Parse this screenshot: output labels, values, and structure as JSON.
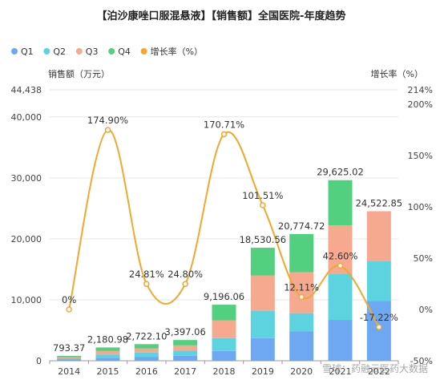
{
  "chart_data": {
    "type": "bar",
    "stacked": true,
    "title": "【泊沙康唑口服混悬液】【销售额】全国医院-年度趋势",
    "ylabel_left": "销售额（万元）",
    "ylabel_right": "增长率（%）",
    "categories": [
      "2014",
      "2015",
      "2016",
      "2017",
      "2018",
      "2019",
      "2020",
      "2021",
      "2022"
    ],
    "series": [
      {
        "name": "Q1",
        "color": "#6ea8f2",
        "values": [
          200,
          500,
          650,
          800,
          1600,
          3700,
          4800,
          6700,
          9800
        ]
      },
      {
        "name": "Q2",
        "color": "#5dd3e0",
        "values": [
          200,
          530,
          680,
          850,
          2100,
          4500,
          3000,
          7500,
          6600
        ]
      },
      {
        "name": "Q3",
        "color": "#f6a98f",
        "values": [
          190,
          570,
          700,
          870,
          2900,
          5800,
          6700,
          8000,
          8122.85
        ]
      },
      {
        "name": "Q4",
        "color": "#52cf7f",
        "values": [
          203.37,
          580.98,
          692.1,
          877.06,
          2596.06,
          4530.56,
          6274.72,
          7425.02,
          0
        ]
      }
    ],
    "totals": [
      "793.37",
      "2,180.98",
      "2,722.10",
      "3,397.06",
      "9,196.06",
      "18,530.56",
      "20,774.72",
      "29,625.02",
      "24,522.85"
    ],
    "growth": {
      "name": "增长率（%）",
      "color": "#f0a830",
      "values": [
        0,
        174.9,
        24.81,
        24.8,
        170.71,
        101.51,
        12.11,
        42.6,
        -17.22
      ],
      "labels": [
        "0%",
        "174.90%",
        "24.81%",
        "24.80%",
        "170.71%",
        "101.51%",
        "12.11%",
        "42.60%",
        "-17.22%"
      ]
    },
    "ylim_left": [
      0,
      44438
    ],
    "yticks_left": [
      "0",
      "10,000",
      "20,000",
      "30,000",
      "40,000",
      "44,438"
    ],
    "yticks_left_values": [
      0,
      10000,
      20000,
      30000,
      40000,
      44438
    ],
    "ylim_right": [
      -50,
      214
    ],
    "yticks_right": [
      "-50%",
      "0%",
      "50%",
      "100%",
      "150%",
      "200%",
      "214%"
    ],
    "yticks_right_values": [
      -50,
      0,
      50,
      100,
      150,
      200,
      214
    ],
    "grid": true,
    "legend_position": "top-left"
  },
  "watermark": "雪球：药融云医药大数据"
}
